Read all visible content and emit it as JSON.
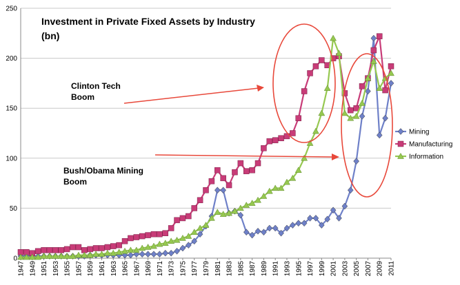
{
  "chart_data": {
    "type": "line",
    "title_lines": [
      "Investment in Private Fixed Assets by Industry",
      "(bn)"
    ],
    "xlabel": "",
    "ylabel": "",
    "ylim": [
      0,
      250
    ],
    "yticks": [
      0,
      50,
      100,
      150,
      200,
      250
    ],
    "grid": true,
    "legend_position": "right",
    "x": [
      1947,
      1948,
      1949,
      1950,
      1951,
      1952,
      1953,
      1954,
      1955,
      1956,
      1957,
      1958,
      1959,
      1960,
      1961,
      1962,
      1963,
      1964,
      1965,
      1966,
      1967,
      1968,
      1969,
      1970,
      1971,
      1972,
      1973,
      1974,
      1975,
      1976,
      1977,
      1978,
      1979,
      1980,
      1981,
      1982,
      1983,
      1984,
      1985,
      1986,
      1987,
      1988,
      1989,
      1990,
      1991,
      1992,
      1993,
      1994,
      1995,
      1996,
      1997,
      1998,
      1999,
      2000,
      2001,
      2002,
      2003,
      2004,
      2005,
      2006,
      2007,
      2008,
      2009,
      2010,
      2011
    ],
    "x_tick_labels": [
      "1947",
      "1949",
      "1951",
      "1953",
      "1955",
      "1957",
      "1959",
      "1961",
      "1963",
      "1965",
      "1967",
      "1969",
      "1971",
      "1973",
      "1975",
      "1977",
      "1979",
      "1981",
      "1983",
      "1985",
      "1987",
      "1989",
      "1991",
      "1993",
      "1995",
      "1997",
      "1999",
      "2001",
      "2003",
      "2005",
      "2007",
      "2009",
      "2011"
    ],
    "series": [
      {
        "name": "Mining",
        "color": "#6e80c8",
        "marker": "diamond",
        "values": [
          2,
          2,
          2,
          2,
          2,
          2,
          2,
          2,
          2,
          2,
          2,
          2,
          3,
          3,
          3,
          3,
          3,
          3,
          3,
          3,
          4,
          4,
          4,
          4,
          4,
          5,
          5,
          7,
          10,
          13,
          17,
          24,
          32,
          42,
          68,
          68,
          45,
          47,
          43,
          26,
          23,
          27,
          26,
          30,
          30,
          25,
          30,
          33,
          35,
          35,
          40,
          40,
          33,
          39,
          48,
          40,
          52,
          68,
          97,
          142,
          167,
          220,
          123,
          140,
          175
        ]
      },
      {
        "name": "Manufacturing",
        "color": "#c83c78",
        "marker": "square",
        "values": [
          6,
          6,
          5,
          7,
          8,
          8,
          8,
          8,
          9,
          11,
          11,
          8,
          9,
          10,
          10,
          11,
          12,
          13,
          17,
          20,
          21,
          22,
          23,
          24,
          24,
          25,
          30,
          38,
          40,
          42,
          50,
          58,
          68,
          77,
          88,
          80,
          73,
          86,
          95,
          87,
          88,
          95,
          110,
          117,
          118,
          120,
          122,
          125,
          140,
          167,
          185,
          192,
          198,
          193,
          200,
          202,
          165,
          148,
          150,
          172,
          180,
          208,
          222,
          168,
          192
        ]
      },
      {
        "name": "Information",
        "color": "#96c850",
        "marker": "triangle",
        "values": [
          1,
          1,
          1,
          1,
          2,
          2,
          2,
          2,
          2,
          2,
          3,
          3,
          3,
          4,
          4,
          5,
          5,
          6,
          7,
          8,
          8,
          10,
          11,
          12,
          14,
          15,
          17,
          18,
          20,
          22,
          26,
          30,
          33,
          40,
          46,
          44,
          45,
          47,
          50,
          53,
          55,
          58,
          62,
          67,
          70,
          70,
          76,
          80,
          88,
          100,
          115,
          127,
          145,
          170,
          220,
          205,
          145,
          140,
          142,
          155,
          180,
          197,
          170,
          180,
          185
        ]
      }
    ],
    "annotations": [
      {
        "lines": [
          "Clinton Tech",
          "Boom"
        ]
      },
      {
        "lines": [
          "Bush/Obama Mining",
          "Boom"
        ]
      }
    ]
  }
}
